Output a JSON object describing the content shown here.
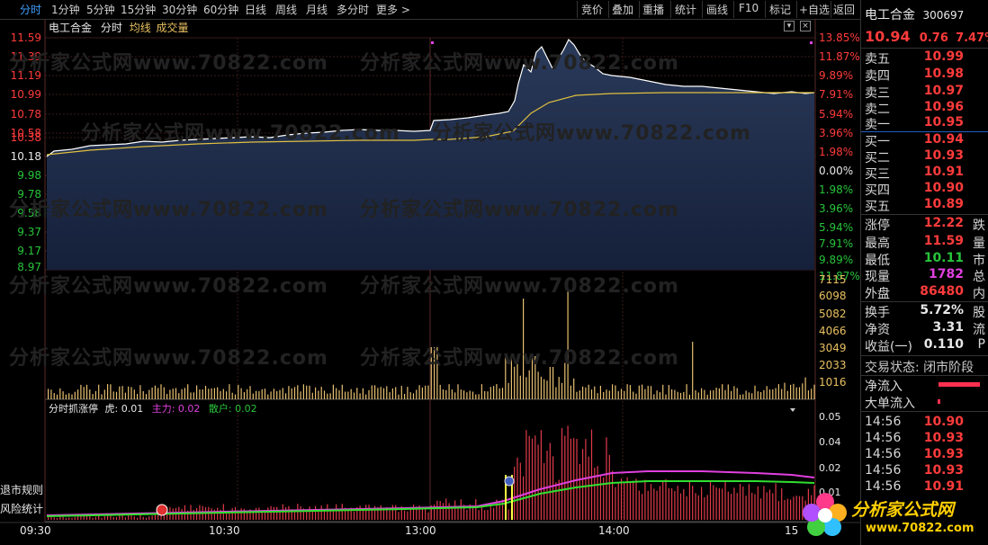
{
  "toolbar": {
    "periods": [
      "分时",
      "1分钟",
      "5分钟",
      "15分钟",
      "30分钟",
      "60分钟",
      "日线",
      "周线",
      "月线",
      "多分时",
      "更多 >"
    ],
    "actions": [
      "竞价",
      "叠加",
      "重播",
      "统计",
      "画线",
      "F10",
      "标记",
      "+自选",
      "返回"
    ]
  },
  "chart_header": {
    "name": "电工合金",
    "tab": "分时",
    "avg_label": "均线",
    "vol_label": "成交量"
  },
  "price_axis": {
    "left": [
      "11.59",
      "11.39",
      "11.19",
      "10.99",
      "10.78",
      "10.58",
      "10.38",
      "10.18",
      "9.98",
      "9.78",
      "9.58",
      "9.37",
      "9.17",
      "8.97"
    ],
    "right": [
      "13.85%",
      "11.87%",
      "9.89%",
      "7.91%",
      "5.94%",
      "3.96%",
      "1.98%",
      "0.00%",
      "1.98%",
      "3.96%",
      "5.94%",
      "7.91%",
      "9.89%",
      "11.87%"
    ]
  },
  "volume_axis": [
    "7115",
    "6098",
    "5082",
    "4066",
    "3049",
    "2033",
    "1016"
  ],
  "indicator": {
    "title": "分时抓涨停",
    "tiger": "虎: 0.01",
    "main": "主力: 0.02",
    "retail": "散户: 0.02",
    "axis": [
      "0.05",
      "0.04",
      "0.02",
      "0.01"
    ]
  },
  "side_labels": [
    "退市规则",
    "风险统计"
  ],
  "time_axis": [
    "09:30",
    "10:30",
    "13:00",
    "14:00",
    "15"
  ],
  "quote": {
    "name": "电工合金",
    "code": "300697",
    "price": "10.94",
    "change": "0.76",
    "pct": "7.47%",
    "asks": [
      {
        "l": "卖五",
        "v": "10.99"
      },
      {
        "l": "卖四",
        "v": "10.98"
      },
      {
        "l": "卖三",
        "v": "10.97"
      },
      {
        "l": "卖二",
        "v": "10.96"
      },
      {
        "l": "卖一",
        "v": "10.95"
      }
    ],
    "bids": [
      {
        "l": "买一",
        "v": "10.94"
      },
      {
        "l": "买二",
        "v": "10.93"
      },
      {
        "l": "买三",
        "v": "10.91"
      },
      {
        "l": "买四",
        "v": "10.90"
      },
      {
        "l": "买五",
        "v": "10.89"
      }
    ],
    "stats": [
      {
        "l": "涨停",
        "v": "12.22",
        "t": "跌"
      },
      {
        "l": "最高",
        "v": "11.59",
        "t": "量"
      },
      {
        "l": "最低",
        "v": "10.11",
        "t": "市"
      },
      {
        "l": "现量",
        "v": "1782",
        "t": "总"
      },
      {
        "l": "外盘",
        "v": "86480",
        "t": "内"
      }
    ],
    "stats2": [
      {
        "l": "换手",
        "v": "5.72%",
        "t": "股"
      },
      {
        "l": "净资",
        "v": "3.31",
        "t": "流"
      },
      {
        "l": "收益(一)",
        "v": "0.110",
        "t": "P"
      }
    ],
    "status": "交易状态: 闭市阶段",
    "flow": [
      {
        "l": "净流入"
      },
      {
        "l": "大单流入"
      }
    ],
    "ticks": [
      {
        "t": "14:56",
        "v": "10.90"
      },
      {
        "t": "14:56",
        "v": "10.93"
      },
      {
        "t": "14:56",
        "v": "10.93"
      },
      {
        "t": "14:56",
        "v": "10.93"
      },
      {
        "t": "14:56",
        "v": "10.91"
      }
    ]
  },
  "watermark": "分析家公式网www.70822.com",
  "logo": {
    "name": "分析家公式网",
    "url": "www.70822.com"
  }
}
